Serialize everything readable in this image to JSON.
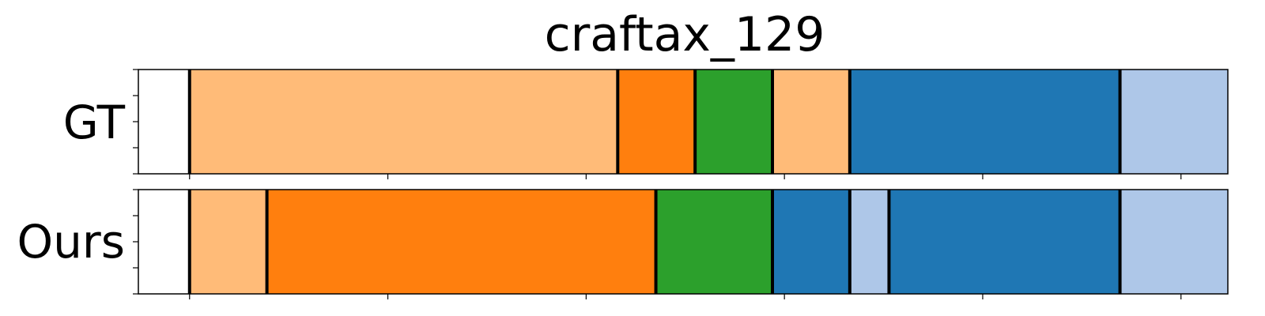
{
  "chart_data": {
    "type": "segmentation-timeline",
    "title": "craftax_129",
    "xlim": [
      0,
      1
    ],
    "colors": {
      "light_orange": "#ffbb78",
      "orange": "#ff7f0e",
      "green": "#2ca02c",
      "blue": "#1f77b4",
      "light_blue": "#aec7e8"
    },
    "rows": [
      {
        "label": "GT",
        "segments": [
          {
            "start": 0.047,
            "end": 0.44,
            "color": "light_orange"
          },
          {
            "start": 0.44,
            "end": 0.511,
            "color": "orange"
          },
          {
            "start": 0.511,
            "end": 0.582,
            "color": "green"
          },
          {
            "start": 0.582,
            "end": 0.653,
            "color": "light_orange"
          },
          {
            "start": 0.653,
            "end": 0.901,
            "color": "blue"
          },
          {
            "start": 0.901,
            "end": 1.043,
            "color": "light_blue"
          }
        ]
      },
      {
        "label": "Ours",
        "segments": [
          {
            "start": 0.047,
            "end": 0.118,
            "color": "light_orange"
          },
          {
            "start": 0.118,
            "end": 0.475,
            "color": "orange"
          },
          {
            "start": 0.475,
            "end": 0.582,
            "color": "green"
          },
          {
            "start": 0.582,
            "end": 0.653,
            "color": "blue"
          },
          {
            "start": 0.653,
            "end": 0.689,
            "color": "light_blue"
          },
          {
            "start": 0.689,
            "end": 0.901,
            "color": "blue"
          },
          {
            "start": 0.901,
            "end": 1.043,
            "color": "light_blue"
          }
        ]
      }
    ]
  }
}
